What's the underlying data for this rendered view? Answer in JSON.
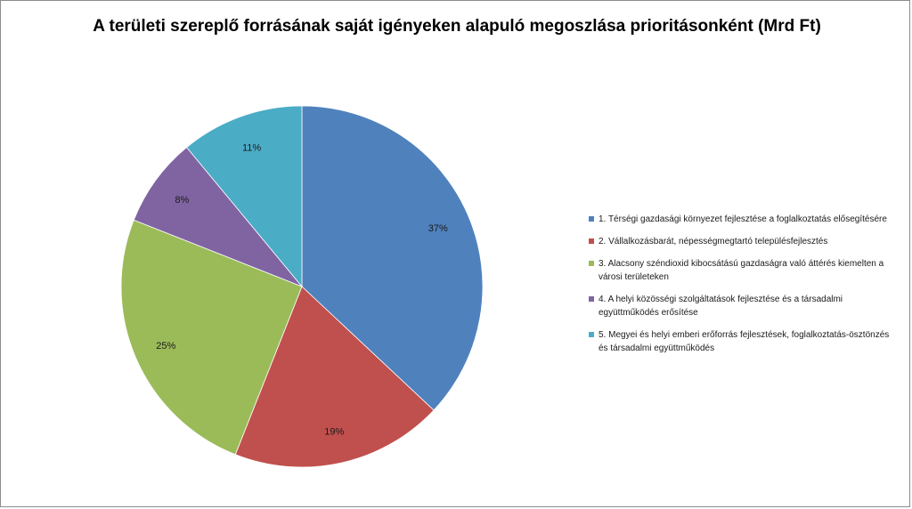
{
  "title": "A területi szereplő forrásának saját igényeken alapuló megoszlása prioritásonként (Mrd Ft)",
  "chart_data": {
    "type": "pie",
    "title": "A területi szereplő forrásának saját igényeken alapuló megoszlása prioritásonként (Mrd Ft)",
    "legend_position": "right",
    "slices": [
      {
        "label": "1. Térségi gazdasági környezet fejlesztése a foglalkoztatás elősegítésére",
        "value": 37,
        "display": "37%",
        "color": "#4F81BD"
      },
      {
        "label": "2. Vállalkozásbarát, népességmegtartó településfejlesztés",
        "value": 19,
        "display": "19%",
        "color": "#C0504D"
      },
      {
        "label": "3. Alacsony széndioxid kibocsátású gazdaságra való áttérés kiemelten a városi területeken",
        "value": 25,
        "display": "25%",
        "color": "#9BBB59"
      },
      {
        "label": "4. A helyi közösségi szolgáltatások  fejlesztése és a társadalmi együttműködés erősítése",
        "value": 8,
        "display": "8%",
        "color": "#8064A2"
      },
      {
        "label": "5. Megyei és helyi emberi erőforrás fejlesztések, foglalkoztatás-ösztönzés  és társadalmi együttműködés",
        "value": 11,
        "display": "11%",
        "color": "#4BACC6"
      }
    ]
  }
}
